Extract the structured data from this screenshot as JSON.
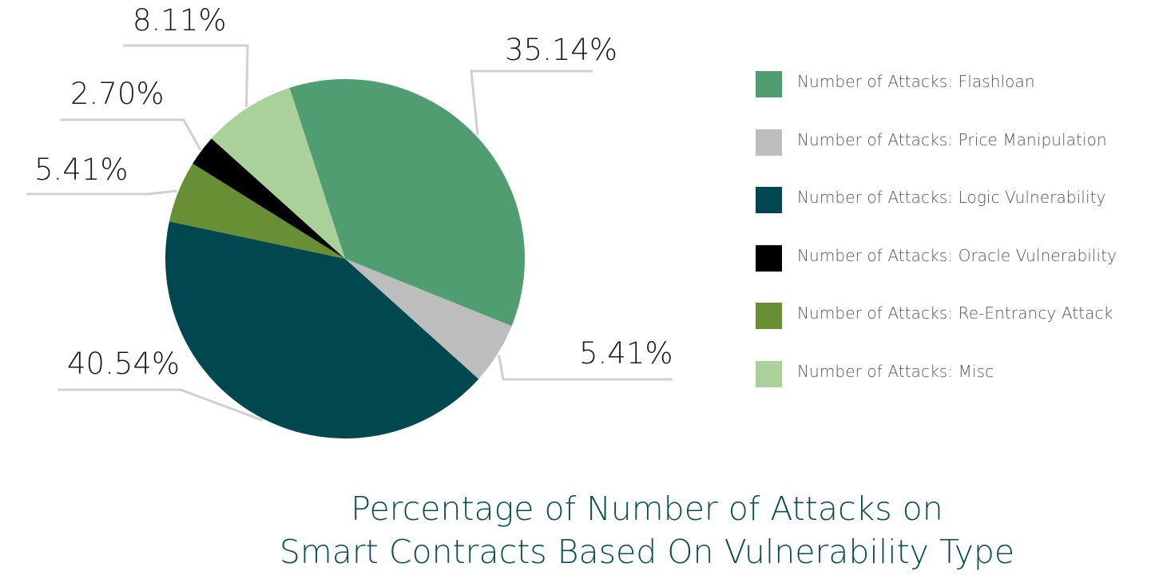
{
  "chart_data": {
    "type": "pie",
    "title_lines": [
      "Percentage of Number of Attacks on",
      "Smart Contracts Based On Vulnerability Type"
    ],
    "start_angle_deg": -18,
    "direction": "clockwise",
    "series": [
      {
        "name": "Number of Attacks: Flashloan",
        "value": 35.14,
        "label": "35.14%",
        "color": "#519d72"
      },
      {
        "name": "Number of Attacks: Price Manipulation",
        "value": 5.41,
        "label": "5.41%",
        "color": "#bcbdbc"
      },
      {
        "name": "Number of Attacks: Logic Vulnerability",
        "value": 40.54,
        "label": "40.54%",
        "color": "#01474f"
      },
      {
        "name": "Number of Attacks: Re‑Entrancy Attack",
        "value": 5.41,
        "label": "5.41%",
        "color": "#688f34"
      },
      {
        "name": "Number of Attacks: Oracle Vulnerability",
        "value": 2.7,
        "label": "2.70%",
        "color": "#000000"
      },
      {
        "name": "Number of Attacks: Misc",
        "value": 8.11,
        "label": "8.11%",
        "color": "#abd19a"
      }
    ],
    "legend": {
      "position": "right",
      "order": [
        "Number of Attacks: Flashloan",
        "Number of Attacks: Price Manipulation",
        "Number of Attacks: Logic Vulnerability",
        "Number of Attacks: Oracle Vulnerability",
        "Number of Attacks: Re‑Entrancy Attack",
        "Number of Attacks: Misc"
      ]
    },
    "leader_line_color": "#d0d0d0",
    "label_color": "#1a1a1a"
  }
}
